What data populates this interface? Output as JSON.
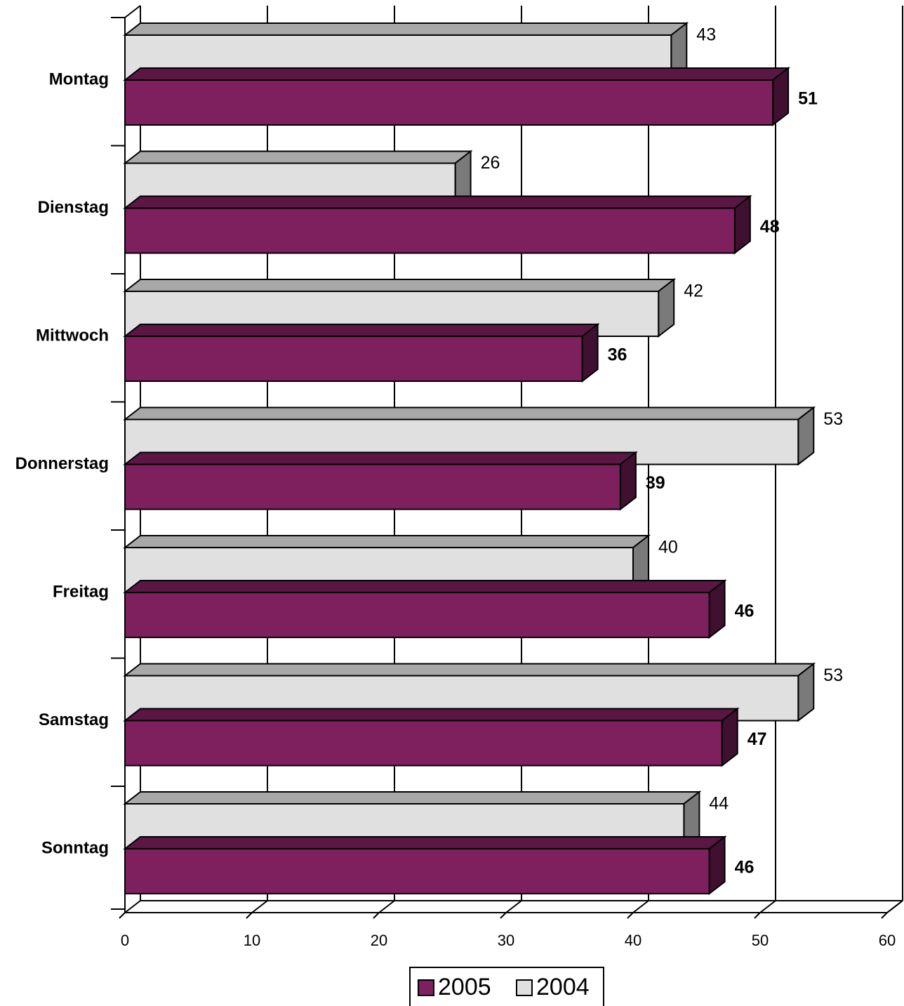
{
  "chart_data": {
    "type": "bar",
    "orientation": "horizontal",
    "style": "3d",
    "categories": [
      "Montag",
      "Dienstag",
      "Mittwoch",
      "Donnerstag",
      "Freitag",
      "Samstag",
      "Sonntag"
    ],
    "series": [
      {
        "name": "2004",
        "values": [
          43,
          26,
          42,
          53,
          40,
          53,
          44
        ],
        "color": "#e0e0e0",
        "label_weight": "normal"
      },
      {
        "name": "2005",
        "values": [
          51,
          48,
          36,
          39,
          46,
          47,
          46
        ],
        "color": "#7e1f5e",
        "label_weight": "bold"
      }
    ],
    "x_ticks": [
      "0",
      "10",
      "20",
      "30",
      "40",
      "50",
      "60"
    ],
    "xlim": [
      0,
      60
    ],
    "grid": true,
    "legend": {
      "position": "bottom-center",
      "entries": [
        "2005",
        "2004"
      ]
    },
    "title": "",
    "xlabel": "",
    "ylabel": ""
  }
}
